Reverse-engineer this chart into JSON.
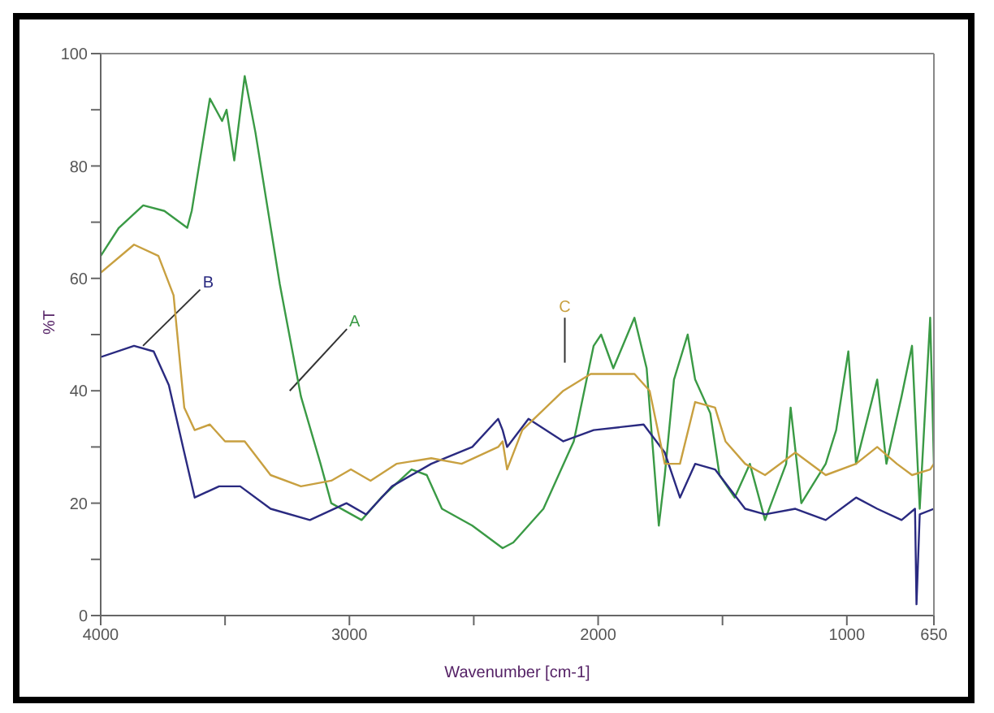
{
  "chart_data": {
    "type": "line",
    "xlabel": "Wavenumber [cm-1]",
    "ylabel": "%T",
    "xlim": [
      4000,
      650
    ],
    "ylim": [
      0,
      100
    ],
    "xticks": [
      4000,
      {
        "value": 3500,
        "label": null
      },
      3000,
      {
        "value": 2500,
        "label": null
      },
      2000,
      {
        "value": 1500,
        "label": null
      },
      1000,
      650
    ],
    "yticks": [
      0,
      {
        "value": 10,
        "label": null
      },
      20,
      {
        "value": 30,
        "label": null
      },
      40,
      {
        "value": 50,
        "label": null
      },
      60,
      {
        "value": 70,
        "label": null
      },
      80,
      {
        "value": 90,
        "label": null
      },
      100
    ],
    "grid": false,
    "marker": "none",
    "line_style": "solid",
    "series": [
      {
        "name": "A",
        "color": "#3a9a45",
        "x": [
          4000,
          3927,
          3829,
          3744,
          3652,
          3634,
          3561,
          3512,
          3494,
          3463,
          3421,
          3378,
          3280,
          3195,
          3116,
          3073,
          2951,
          2872,
          2750,
          2689,
          2628,
          2506,
          2384,
          2341,
          2220,
          2098,
          2018,
          1988,
          1939,
          1854,
          1805,
          1756,
          1732,
          1695,
          1640,
          1610,
          1549,
          1512,
          1451,
          1390,
          1329,
          1244,
          1226,
          1183,
          1085,
          1043,
          994,
          963,
          878,
          841,
          780,
          738,
          707,
          665,
          650
        ],
        "values": [
          64,
          69,
          73,
          72,
          69,
          72,
          92,
          88,
          90,
          81,
          96,
          86,
          59,
          39,
          27,
          20,
          17,
          21,
          26,
          25,
          19,
          16,
          12,
          13,
          19,
          31,
          48,
          50,
          44,
          53,
          44,
          16,
          25,
          42,
          50,
          42,
          36,
          25,
          21,
          27,
          17,
          27,
          37,
          20,
          27,
          33,
          47,
          27,
          42,
          27,
          39,
          48,
          19,
          53,
          27
        ]
      },
      {
        "name": "B",
        "color": "#2a2a80",
        "x": [
          4000,
          3866,
          3787,
          3726,
          3664,
          3622,
          3524,
          3439,
          3317,
          3159,
          3012,
          2933,
          2829,
          2671,
          2506,
          2402,
          2384,
          2366,
          2280,
          2140,
          2018,
          1817,
          1732,
          1671,
          1610,
          1530,
          1409,
          1329,
          1207,
          1085,
          963,
          878,
          780,
          726,
          720,
          707,
          650
        ],
        "values": [
          46,
          48,
          47,
          41,
          29,
          21,
          23,
          23,
          19,
          17,
          20,
          18,
          23,
          27,
          30,
          35,
          33,
          30,
          35,
          31,
          33,
          34,
          29,
          21,
          27,
          26,
          19,
          18,
          19,
          17,
          21,
          19,
          17,
          19,
          2,
          18,
          19
        ]
      },
      {
        "name": "C",
        "color": "#c8a040",
        "x": [
          4000,
          3866,
          3768,
          3707,
          3664,
          3622,
          3561,
          3500,
          3421,
          3317,
          3195,
          3073,
          2994,
          2915,
          2811,
          2671,
          2549,
          2402,
          2384,
          2366,
          2305,
          2140,
          2030,
          1854,
          1793,
          1732,
          1671,
          1610,
          1530,
          1488,
          1409,
          1329,
          1207,
          1085,
          963,
          878,
          799,
          738,
          665,
          650
        ],
        "values": [
          61,
          66,
          64,
          57,
          37,
          33,
          34,
          31,
          31,
          25,
          23,
          24,
          26,
          24,
          27,
          28,
          27,
          30,
          31,
          26,
          33,
          40,
          43,
          43,
          40,
          27,
          27,
          38,
          37,
          31,
          27,
          25,
          29,
          25,
          27,
          30,
          27,
          25,
          26,
          27
        ]
      }
    ]
  }
}
